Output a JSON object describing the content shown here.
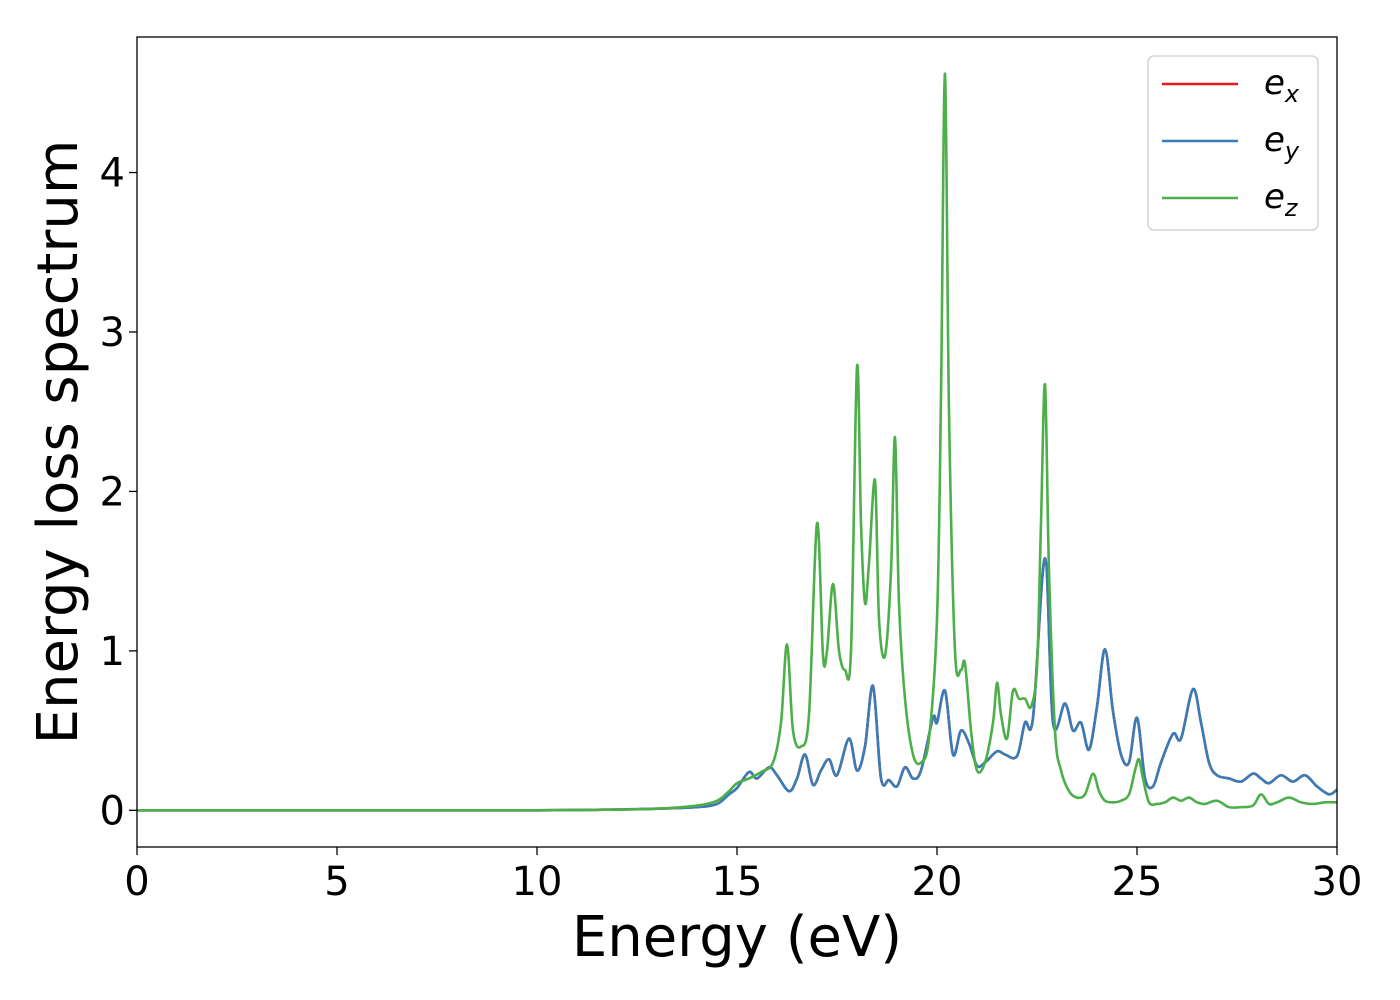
{
  "chart_data": {
    "type": "line",
    "title": "",
    "xlabel": "Energy (eV)",
    "ylabel": "Energy loss spectrum",
    "xlim": [
      0,
      30
    ],
    "ylim": [
      -0.23,
      4.85
    ],
    "xticks": [
      0,
      5,
      10,
      15,
      20,
      25,
      30
    ],
    "yticks": [
      0,
      1,
      2,
      3,
      4
    ],
    "grid": false,
    "legend_position": "top-right",
    "series": [
      {
        "name": "e",
        "subscript": "x",
        "color": "#e41a1c",
        "x": [
          0,
          5,
          10,
          12,
          13,
          14,
          14.5,
          14.8,
          15.0,
          15.3,
          15.5,
          15.8,
          16.0,
          16.3,
          16.5,
          16.7,
          16.9,
          17.1,
          17.3,
          17.5,
          17.8,
          18.0,
          18.2,
          18.4,
          18.6,
          18.8,
          19.0,
          19.2,
          19.4,
          19.6,
          19.9,
          20.0,
          20.2,
          20.4,
          20.6,
          20.8,
          21.0,
          21.2,
          21.5,
          21.7,
          22.0,
          22.2,
          22.4,
          22.7,
          22.9,
          23.2,
          23.4,
          23.6,
          23.8,
          24.0,
          24.2,
          24.4,
          24.6,
          24.8,
          25.0,
          25.2,
          25.4,
          25.6,
          25.9,
          26.1,
          26.4,
          26.6,
          26.8,
          27.0,
          27.3,
          27.6,
          27.9,
          28.1,
          28.3,
          28.6,
          28.9,
          29.2,
          29.5,
          29.8,
          30.0
        ],
        "y": [
          0,
          0,
          0,
          0.005,
          0.01,
          0.02,
          0.04,
          0.1,
          0.14,
          0.24,
          0.2,
          0.27,
          0.22,
          0.12,
          0.2,
          0.35,
          0.16,
          0.25,
          0.32,
          0.22,
          0.45,
          0.25,
          0.4,
          0.78,
          0.2,
          0.19,
          0.15,
          0.27,
          0.2,
          0.25,
          0.58,
          0.55,
          0.75,
          0.35,
          0.5,
          0.42,
          0.28,
          0.3,
          0.37,
          0.35,
          0.34,
          0.55,
          0.58,
          1.58,
          0.55,
          0.67,
          0.5,
          0.55,
          0.38,
          0.65,
          1.01,
          0.62,
          0.35,
          0.3,
          0.58,
          0.2,
          0.15,
          0.3,
          0.48,
          0.45,
          0.76,
          0.55,
          0.3,
          0.22,
          0.2,
          0.18,
          0.23,
          0.2,
          0.17,
          0.22,
          0.18,
          0.22,
          0.15,
          0.1,
          0.13
        ]
      },
      {
        "name": "e",
        "subscript": "y",
        "color": "#377eb8",
        "x": [
          0,
          5,
          10,
          12,
          13,
          14,
          14.5,
          14.8,
          15.0,
          15.3,
          15.5,
          15.8,
          16.0,
          16.3,
          16.5,
          16.7,
          16.9,
          17.1,
          17.3,
          17.5,
          17.8,
          18.0,
          18.2,
          18.4,
          18.6,
          18.8,
          19.0,
          19.2,
          19.4,
          19.6,
          19.9,
          20.0,
          20.2,
          20.4,
          20.6,
          20.8,
          21.0,
          21.2,
          21.5,
          21.7,
          22.0,
          22.2,
          22.4,
          22.7,
          22.9,
          23.2,
          23.4,
          23.6,
          23.8,
          24.0,
          24.2,
          24.4,
          24.6,
          24.8,
          25.0,
          25.2,
          25.4,
          25.6,
          25.9,
          26.1,
          26.4,
          26.6,
          26.8,
          27.0,
          27.3,
          27.6,
          27.9,
          28.1,
          28.3,
          28.6,
          28.9,
          29.2,
          29.5,
          29.8,
          30.0
        ],
        "y": [
          0,
          0,
          0,
          0.005,
          0.01,
          0.02,
          0.04,
          0.1,
          0.14,
          0.24,
          0.2,
          0.27,
          0.22,
          0.12,
          0.2,
          0.35,
          0.16,
          0.25,
          0.32,
          0.22,
          0.45,
          0.25,
          0.4,
          0.78,
          0.2,
          0.19,
          0.15,
          0.27,
          0.2,
          0.25,
          0.58,
          0.55,
          0.75,
          0.35,
          0.5,
          0.42,
          0.28,
          0.3,
          0.37,
          0.35,
          0.34,
          0.55,
          0.58,
          1.58,
          0.55,
          0.67,
          0.5,
          0.55,
          0.38,
          0.65,
          1.01,
          0.62,
          0.35,
          0.3,
          0.58,
          0.2,
          0.15,
          0.3,
          0.48,
          0.45,
          0.76,
          0.55,
          0.3,
          0.22,
          0.2,
          0.18,
          0.23,
          0.2,
          0.17,
          0.22,
          0.18,
          0.22,
          0.15,
          0.1,
          0.13
        ]
      },
      {
        "name": "e",
        "subscript": "z",
        "color": "#4daf4a",
        "x": [
          0,
          5,
          10,
          12,
          13,
          14,
          14.5,
          14.8,
          15.0,
          15.3,
          15.6,
          15.9,
          16.1,
          16.25,
          16.4,
          16.6,
          16.8,
          17.0,
          17.15,
          17.25,
          17.4,
          17.55,
          17.7,
          17.85,
          18.0,
          18.1,
          18.2,
          18.3,
          18.45,
          18.55,
          18.7,
          18.85,
          18.95,
          19.05,
          19.2,
          19.4,
          19.6,
          19.8,
          20.0,
          20.1,
          20.2,
          20.3,
          20.45,
          20.6,
          20.7,
          20.85,
          21.0,
          21.2,
          21.4,
          21.5,
          21.6,
          21.75,
          21.9,
          22.05,
          22.2,
          22.35,
          22.5,
          22.6,
          22.7,
          22.8,
          22.95,
          23.1,
          23.3,
          23.5,
          23.7,
          23.9,
          24.05,
          24.2,
          24.4,
          24.6,
          24.8,
          24.95,
          25.05,
          25.15,
          25.3,
          25.5,
          25.7,
          25.9,
          26.1,
          26.3,
          26.5,
          26.7,
          27.0,
          27.3,
          27.6,
          27.9,
          28.1,
          28.3,
          28.5,
          28.8,
          29.1,
          29.4,
          29.7,
          30.0
        ],
        "y": [
          0,
          0,
          0,
          0.005,
          0.01,
          0.03,
          0.06,
          0.12,
          0.17,
          0.2,
          0.24,
          0.3,
          0.55,
          1.04,
          0.5,
          0.4,
          0.6,
          1.8,
          0.97,
          1.0,
          1.42,
          1.0,
          0.88,
          1.0,
          2.78,
          1.8,
          1.3,
          1.55,
          2.07,
          1.2,
          0.97,
          1.5,
          2.34,
          1.3,
          0.7,
          0.35,
          0.3,
          0.45,
          1.2,
          2.6,
          4.62,
          2.5,
          1.0,
          0.88,
          0.92,
          0.5,
          0.25,
          0.3,
          0.55,
          0.8,
          0.6,
          0.45,
          0.75,
          0.7,
          0.7,
          0.65,
          0.9,
          1.8,
          2.67,
          1.5,
          0.5,
          0.25,
          0.12,
          0.08,
          0.1,
          0.23,
          0.12,
          0.06,
          0.05,
          0.06,
          0.1,
          0.25,
          0.32,
          0.2,
          0.05,
          0.04,
          0.05,
          0.08,
          0.06,
          0.08,
          0.05,
          0.04,
          0.06,
          0.02,
          0.02,
          0.03,
          0.1,
          0.04,
          0.05,
          0.08,
          0.05,
          0.04,
          0.05,
          0.05
        ]
      }
    ]
  }
}
